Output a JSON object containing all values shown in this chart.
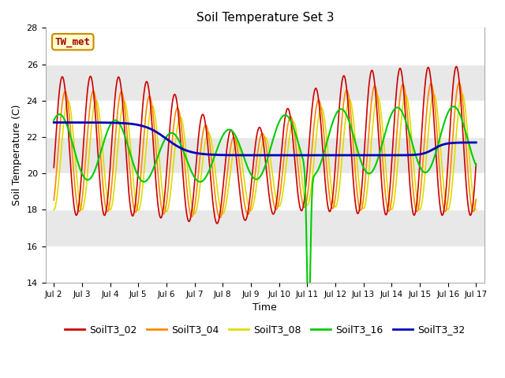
{
  "title": "Soil Temperature Set 3",
  "xlabel": "Time",
  "ylabel": "Soil Temperature (C)",
  "ylim": [
    14,
    28
  ],
  "xlim": [
    0,
    15
  ],
  "xtick_labels": [
    "Jul 2",
    "Jul 3",
    "Jul 4",
    "Jul 5",
    "Jul 6",
    "Jul 7",
    "Jul 8",
    "Jul 9",
    "Jul 10",
    "Jul 11",
    "Jul 12",
    "Jul 13",
    "Jul 14",
    "Jul 15",
    "Jul 16",
    "Jul 17"
  ],
  "ytick_values": [
    14,
    16,
    18,
    20,
    22,
    24,
    26,
    28
  ],
  "legend_label": "TW_met",
  "color_02": "#cc0000",
  "color_04": "#ff8800",
  "color_08": "#dddd00",
  "color_16": "#00cc00",
  "color_32": "#0000bb",
  "bg_color": "#f0f0f0",
  "grid_color": "#ffffff",
  "annotation_fg": "#aa0000",
  "annotation_bg": "#ffffcc",
  "annotation_edge": "#cc8800"
}
